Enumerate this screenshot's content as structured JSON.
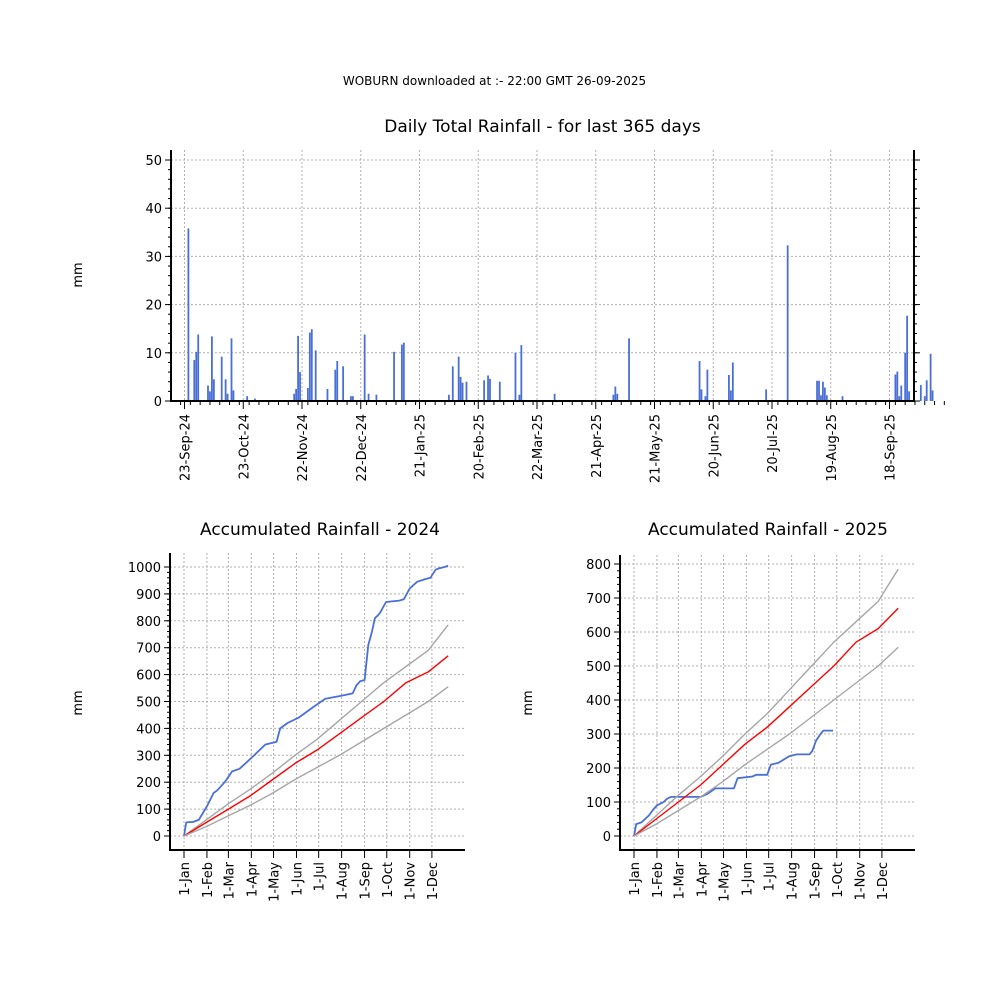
{
  "header": {
    "text": "WOBURN downloaded at :- 22:00 GMT 26-09-2025"
  },
  "colors": {
    "bar": "#4a6fd6",
    "accumulated": "#4a6fd6",
    "mean": "#ff0000",
    "band": "#a6a6a6",
    "grid": "#b0b0b0"
  },
  "chart_data": [
    {
      "type": "bar",
      "title": "Daily Total Rainfall - for last 365 days",
      "ylabel": "mm",
      "ylim": [
        0,
        50
      ],
      "yticks": [
        "0",
        "10",
        "20",
        "30",
        "40",
        "50"
      ],
      "x_tick_labels": [
        "23-Sep-24",
        "23-Oct-24",
        "22-Nov-24",
        "22-Dec-24",
        "21-Jan-25",
        "20-Feb-25",
        "22-Mar-25",
        "21-Apr-25",
        "21-May-25",
        "20-Jun-25",
        "20-Jul-25",
        "19-Aug-25",
        "18-Sep-25"
      ],
      "grid": true,
      "values": [
        0,
        0,
        0,
        0,
        35.8,
        0,
        0,
        8.5,
        10.2,
        13.8,
        0,
        0,
        0,
        0,
        3.2,
        2,
        13.4,
        4.5,
        0,
        0,
        0,
        9.2,
        0,
        4.5,
        1.5,
        0,
        13,
        2.2,
        0,
        0,
        0,
        0,
        0,
        0,
        1,
        0,
        0,
        0,
        0.5,
        0,
        0,
        0,
        0,
        0,
        0,
        0,
        0,
        0,
        0,
        0,
        0,
        0,
        0,
        0,
        0,
        0,
        0,
        0,
        1.5,
        2.5,
        13.5,
        6,
        0,
        0,
        0,
        2.7,
        14.2,
        14.9,
        0,
        10.5,
        0,
        0,
        0,
        0,
        0,
        2.5,
        0,
        0,
        0,
        6.5,
        8.3,
        0,
        0,
        7.2,
        0,
        0,
        0,
        1,
        1,
        0,
        0,
        0,
        0,
        0,
        13.8,
        0,
        1.5,
        0,
        0,
        0,
        1.3,
        0,
        0,
        0,
        0,
        0,
        0,
        0,
        0,
        10.2,
        0,
        0,
        0,
        11.7,
        12.1,
        0,
        0,
        0,
        0,
        0,
        0,
        0,
        0,
        0,
        0,
        0,
        0,
        0,
        0,
        0,
        0,
        0,
        0,
        0,
        0,
        0,
        0,
        1.3,
        0,
        7.2,
        0,
        0,
        9.2,
        5,
        3.8,
        0,
        4,
        0,
        0,
        0,
        0,
        0,
        0,
        0,
        0,
        4.3,
        0,
        5.3,
        4.6,
        0,
        0,
        0,
        0,
        4,
        0,
        0,
        0,
        0,
        0,
        0,
        0,
        10,
        0,
        1.3,
        11.6,
        0,
        0,
        0,
        0,
        0,
        0,
        0,
        0,
        0,
        0,
        0,
        0,
        0,
        0,
        0,
        0,
        1.5,
        0,
        0,
        0,
        0,
        0,
        0,
        0,
        0,
        0,
        0,
        0,
        0,
        0,
        0,
        0,
        0,
        0,
        0,
        0,
        0,
        0,
        0,
        0,
        0,
        0,
        0,
        0,
        0,
        0,
        1.3,
        3,
        1.5,
        0,
        0,
        0,
        0,
        0,
        13,
        0,
        0,
        0,
        0,
        0,
        0,
        0,
        0,
        0,
        0,
        0,
        0,
        0,
        0,
        0,
        0,
        0,
        0,
        0,
        0,
        0,
        0,
        0,
        0,
        0,
        0,
        0,
        0,
        0,
        0,
        0,
        0,
        0,
        0,
        0,
        8.3,
        2.4,
        0,
        1,
        6.5,
        0,
        0,
        0,
        0,
        0,
        0,
        0,
        0,
        0,
        0,
        5.4,
        2.2,
        8,
        0,
        0,
        0,
        0,
        0,
        0,
        0,
        0,
        0,
        0,
        0,
        0,
        0,
        0,
        0,
        0,
        2.4,
        0,
        0,
        0,
        0,
        0,
        0,
        0,
        0,
        0,
        0,
        32.3,
        0,
        0,
        0,
        0,
        0,
        0,
        0,
        0,
        0,
        0,
        0,
        0,
        0,
        0,
        4.2,
        4.2,
        1.2,
        4,
        2.8,
        1.2,
        0,
        0,
        0,
        0,
        0,
        0,
        0,
        1,
        0,
        0,
        0,
        0,
        0,
        0,
        0,
        0,
        0,
        0,
        0,
        0,
        0,
        0,
        0,
        0,
        0,
        0,
        0,
        0,
        0,
        0,
        0,
        0,
        0,
        0,
        5.5,
        6.1,
        1,
        3.2,
        0,
        10,
        17.7,
        2,
        0,
        0,
        0,
        0,
        0,
        3.3,
        0,
        1,
        4.3,
        0,
        9.8,
        2.2,
        0,
        0,
        0,
        0,
        0,
        0,
        0
      ]
    },
    {
      "type": "line",
      "title": "Accumulated Rainfall - 2024",
      "ylabel": "mm",
      "ylim": [
        0,
        1000
      ],
      "yticks": [
        "0",
        "100",
        "200",
        "300",
        "400",
        "500",
        "600",
        "700",
        "800",
        "900",
        "1000"
      ],
      "x_tick_labels": [
        "1-Jan",
        "1-Feb",
        "1-Mar",
        "1-Apr",
        "1-May",
        "1-Jun",
        "1-Jul",
        "1-Aug",
        "1-Sep",
        "1-Oct",
        "1-Nov",
        "1-Dec"
      ],
      "grid": true,
      "series": [
        {
          "x": [
            0,
            3,
            8,
            12,
            16,
            20,
            31,
            40,
            45,
            55,
            65,
            75,
            91,
            110,
            125,
            130,
            140,
            155,
            175,
            191,
            200,
            210,
            228,
            233,
            238,
            244,
            249,
            254,
            258,
            262,
            265,
            273,
            291,
            297,
            305,
            315,
            326,
            333,
            340,
            345,
            352,
            357
          ],
          "y": [
            0,
            50,
            52,
            52,
            56,
            60,
            110,
            160,
            170,
            200,
            240,
            250,
            290,
            340,
            350,
            400,
            420,
            440,
            480,
            510,
            515,
            520,
            530,
            560,
            575,
            580,
            710,
            760,
            810,
            820,
            830,
            870,
            875,
            880,
            920,
            945,
            955,
            960,
            990,
            995,
            1000,
            1005
          ],
          "color": "#4a6fd6"
        },
        {
          "x": [
            0,
            30,
            60,
            90,
            120,
            150,
            180,
            210,
            240,
            270,
            300,
            330,
            357
          ],
          "y": [
            0,
            60,
            120,
            175,
            235,
            300,
            360,
            430,
            500,
            570,
            630,
            690,
            785
          ],
          "color": "#a6a6a6"
        },
        {
          "x": [
            0,
            30,
            60,
            90,
            120,
            150,
            180,
            210,
            240,
            270,
            300,
            330,
            357
          ],
          "y": [
            0,
            50,
            100,
            150,
            210,
            270,
            320,
            380,
            440,
            500,
            570,
            610,
            670
          ],
          "color": "#ff0000"
        },
        {
          "x": [
            0,
            30,
            60,
            90,
            120,
            150,
            180,
            210,
            240,
            270,
            300,
            330,
            357
          ],
          "y": [
            0,
            35,
            75,
            115,
            160,
            210,
            255,
            300,
            350,
            400,
            450,
            500,
            555
          ],
          "color": "#a6a6a6"
        }
      ]
    },
    {
      "type": "line",
      "title": "Accumulated Rainfall - 2025",
      "ylabel": "mm",
      "ylim": [
        0,
        800
      ],
      "yticks": [
        "0",
        "100",
        "200",
        "300",
        "400",
        "500",
        "600",
        "700",
        "800"
      ],
      "x_tick_labels": [
        "1-Jan",
        "1-Feb",
        "1-Mar",
        "1-Apr",
        "1-May",
        "1-Jun",
        "1-Jul",
        "1-Aug",
        "1-Sep",
        "1-Oct",
        "1-Nov",
        "1-Dec"
      ],
      "grid": true,
      "series": [
        {
          "x": [
            0,
            3,
            10,
            15,
            20,
            25,
            31,
            40,
            45,
            50,
            60,
            75,
            90,
            100,
            110,
            135,
            140,
            160,
            165,
            180,
            185,
            195,
            210,
            220,
            230,
            237,
            241,
            246,
            252,
            256,
            262,
            269
          ],
          "y": [
            0,
            35,
            40,
            50,
            60,
            75,
            90,
            100,
            110,
            115,
            115,
            115,
            115,
            125,
            140,
            140,
            170,
            175,
            180,
            180,
            210,
            215,
            235,
            240,
            240,
            240,
            250,
            280,
            300,
            310,
            310,
            310
          ],
          "color": "#4a6fd6"
        },
        {
          "x": [
            0,
            30,
            60,
            90,
            120,
            150,
            180,
            210,
            240,
            270,
            300,
            330,
            357
          ],
          "y": [
            0,
            60,
            120,
            175,
            235,
            300,
            360,
            430,
            500,
            570,
            630,
            690,
            785
          ],
          "color": "#a6a6a6"
        },
        {
          "x": [
            0,
            30,
            60,
            90,
            120,
            150,
            180,
            210,
            240,
            270,
            300,
            330,
            357
          ],
          "y": [
            0,
            50,
            100,
            150,
            210,
            270,
            320,
            380,
            440,
            500,
            570,
            610,
            670
          ],
          "color": "#ff0000"
        },
        {
          "x": [
            0,
            30,
            60,
            90,
            120,
            150,
            180,
            210,
            240,
            270,
            300,
            330,
            357
          ],
          "y": [
            0,
            35,
            75,
            115,
            160,
            210,
            255,
            300,
            350,
            400,
            450,
            500,
            555
          ],
          "color": "#a6a6a6"
        }
      ]
    }
  ]
}
